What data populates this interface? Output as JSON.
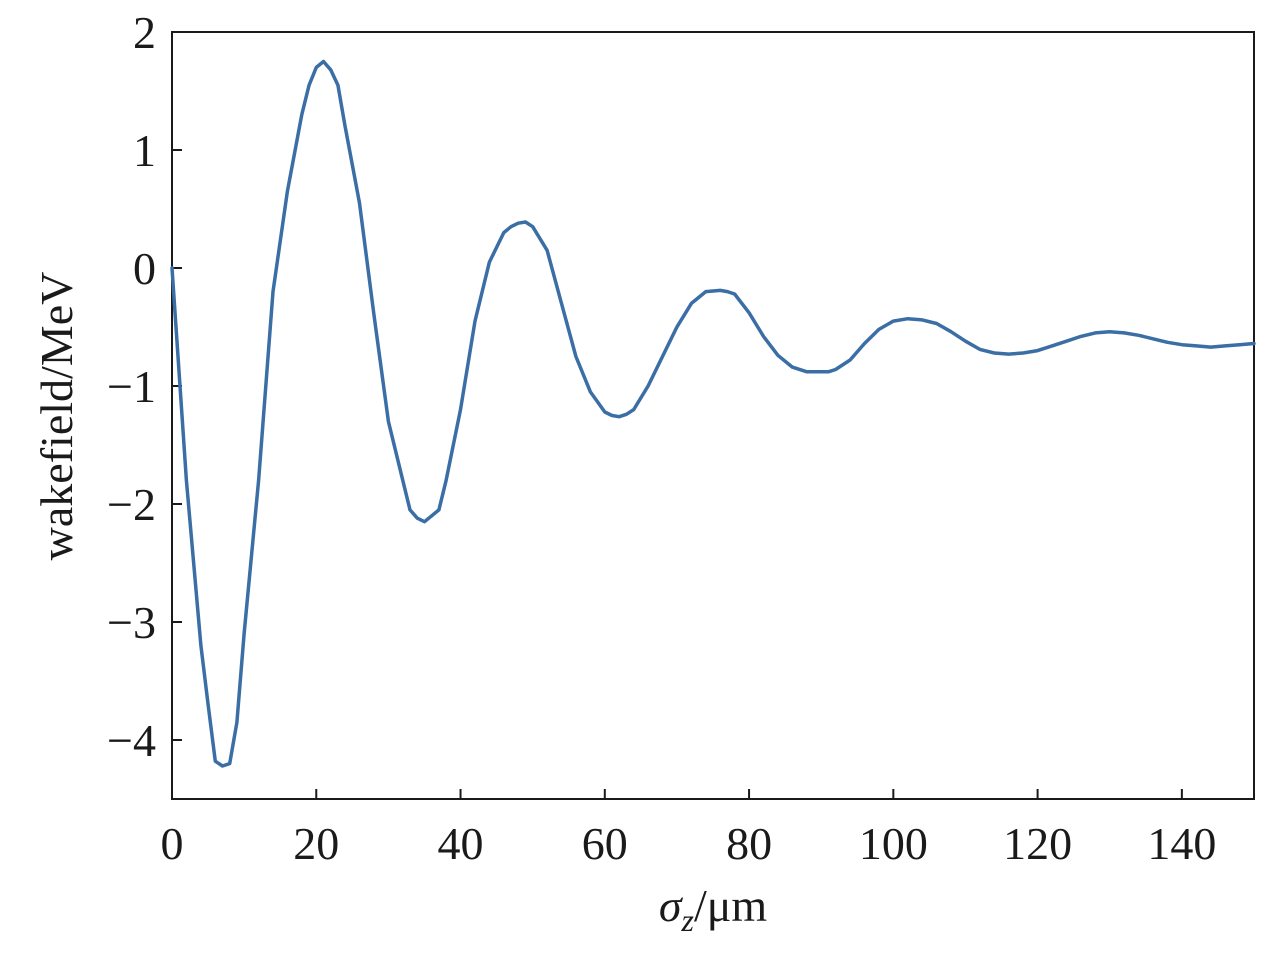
{
  "chart_data": {
    "type": "line",
    "title": "",
    "xlabel_symbol": "σ",
    "xlabel_subscript": "z",
    "xlabel_unit": "/μm",
    "ylabel": "wakefield/MeV",
    "xlim": [
      0,
      150
    ],
    "ylim": [
      -4.5,
      2
    ],
    "xticks": [
      0,
      20,
      40,
      60,
      80,
      100,
      120,
      140
    ],
    "xtick_labels": [
      "0",
      "20",
      "40",
      "60",
      "80",
      "100",
      "120",
      "140"
    ],
    "yticks": [
      2,
      1,
      0,
      -1,
      -2,
      -3,
      -4
    ],
    "ytick_labels": [
      "2",
      "1",
      "0",
      "−1",
      "−2",
      "−3",
      "−4"
    ],
    "grid": false,
    "line_color": "#3a6ea5",
    "series": [
      {
        "x": [
          0,
          2,
          4,
          5,
          6,
          7,
          8,
          9,
          10,
          12,
          14,
          16,
          18,
          19,
          20,
          21,
          22,
          23,
          24,
          26,
          28,
          30,
          32,
          33,
          34,
          35,
          36,
          37,
          38,
          40,
          42,
          44,
          46,
          47,
          48,
          49,
          50,
          52,
          54,
          56,
          58,
          60,
          61,
          62,
          63,
          64,
          66,
          68,
          70,
          72,
          74,
          76,
          77,
          78,
          80,
          82,
          84,
          86,
          88,
          90,
          91,
          92,
          94,
          96,
          98,
          100,
          102,
          104,
          106,
          108,
          110,
          112,
          114,
          116,
          118,
          120,
          122,
          124,
          126,
          128,
          130,
          132,
          134,
          136,
          138,
          140,
          142,
          144,
          146,
          148,
          150
        ],
        "y": [
          0,
          -1.8,
          -3.2,
          -3.7,
          -4.18,
          -4.22,
          -4.2,
          -3.85,
          -3.1,
          -1.8,
          -0.2,
          0.65,
          1.3,
          1.55,
          1.7,
          1.75,
          1.68,
          1.55,
          1.2,
          0.55,
          -0.4,
          -1.3,
          -1.8,
          -2.05,
          -2.12,
          -2.15,
          -2.1,
          -2.05,
          -1.8,
          -1.2,
          -0.45,
          0.05,
          0.3,
          0.35,
          0.38,
          0.39,
          0.35,
          0.15,
          -0.3,
          -0.75,
          -1.05,
          -1.22,
          -1.25,
          -1.26,
          -1.24,
          -1.2,
          -1.0,
          -0.75,
          -0.5,
          -0.3,
          -0.2,
          -0.19,
          -0.2,
          -0.22,
          -0.38,
          -0.58,
          -0.74,
          -0.84,
          -0.88,
          -0.88,
          -0.88,
          -0.86,
          -0.78,
          -0.64,
          -0.52,
          -0.45,
          -0.43,
          -0.44,
          -0.47,
          -0.54,
          -0.62,
          -0.69,
          -0.72,
          -0.73,
          -0.72,
          -0.7,
          -0.66,
          -0.62,
          -0.58,
          -0.55,
          -0.54,
          -0.55,
          -0.57,
          -0.6,
          -0.63,
          -0.65,
          -0.66,
          -0.67,
          -0.66,
          -0.65,
          -0.64
        ]
      }
    ]
  }
}
